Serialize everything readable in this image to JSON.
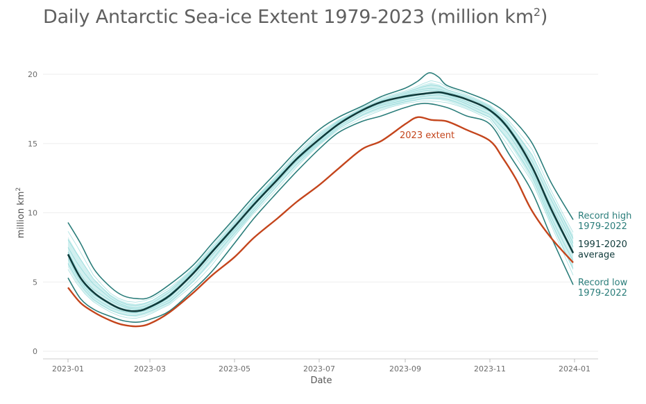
{
  "title": {
    "text": "Daily Antarctic Sea-ice Extent 1979-2023 (million km",
    "sup": "2",
    "close": ")"
  },
  "chart_data": {
    "type": "line",
    "title": "Daily Antarctic Sea-ice Extent 1979-2023 (million km2)",
    "xlabel": "Date",
    "ylabel": "million km",
    "ylabel_sup": "2",
    "ylim": [
      0,
      20
    ],
    "yticks": [
      0,
      5,
      10,
      15,
      20
    ],
    "xlim": [
      "2023-01-01",
      "2024-01-01"
    ],
    "xticks": [
      "2023-01",
      "2023-03",
      "2023-05",
      "2023-07",
      "2023-09",
      "2023-11",
      "2024-01"
    ],
    "grid": "horizontal",
    "series": [
      {
        "name": "Record high 1979-2022",
        "label_lines": [
          "Record high",
          "1979-2022"
        ],
        "color": "#2a7d7a",
        "x": [
          "2023-01-01",
          "2023-01-10",
          "2023-01-20",
          "2023-02-01",
          "2023-02-10",
          "2023-02-20",
          "2023-03-01",
          "2023-03-15",
          "2023-04-01",
          "2023-04-15",
          "2023-05-01",
          "2023-05-15",
          "2023-06-01",
          "2023-06-15",
          "2023-07-01",
          "2023-07-15",
          "2023-08-01",
          "2023-08-15",
          "2023-09-01",
          "2023-09-10",
          "2023-09-18",
          "2023-09-25",
          "2023-10-01",
          "2023-10-15",
          "2023-11-01",
          "2023-11-15",
          "2023-12-01",
          "2023-12-15",
          "2023-12-31"
        ],
        "y": [
          9.3,
          7.8,
          5.9,
          4.6,
          4.0,
          3.8,
          3.9,
          4.8,
          6.2,
          7.8,
          9.6,
          11.2,
          13.0,
          14.5,
          16.0,
          16.9,
          17.7,
          18.4,
          19.0,
          19.5,
          20.1,
          19.8,
          19.2,
          18.7,
          18.0,
          17.0,
          15.1,
          12.2,
          9.5
        ]
      },
      {
        "name": "1991-2020 average",
        "label_lines": [
          "1991-2020",
          "average"
        ],
        "color": "#0f3a3a",
        "x": [
          "2023-01-01",
          "2023-01-10",
          "2023-01-20",
          "2023-02-01",
          "2023-02-10",
          "2023-02-20",
          "2023-03-01",
          "2023-03-15",
          "2023-04-01",
          "2023-04-15",
          "2023-05-01",
          "2023-05-15",
          "2023-06-01",
          "2023-06-15",
          "2023-07-01",
          "2023-07-15",
          "2023-08-01",
          "2023-08-15",
          "2023-09-01",
          "2023-09-15",
          "2023-09-25",
          "2023-10-01",
          "2023-10-15",
          "2023-11-01",
          "2023-11-15",
          "2023-12-01",
          "2023-12-15",
          "2023-12-31"
        ],
        "y": [
          7.0,
          5.3,
          4.2,
          3.4,
          3.0,
          2.9,
          3.2,
          4.0,
          5.6,
          7.2,
          9.0,
          10.6,
          12.4,
          13.9,
          15.3,
          16.4,
          17.4,
          18.0,
          18.4,
          18.6,
          18.7,
          18.6,
          18.2,
          17.4,
          16.0,
          13.4,
          10.3,
          7.1
        ]
      },
      {
        "name": "Record low 1979-2022",
        "label_lines": [
          "Record low",
          "1979-2022"
        ],
        "color": "#2a7d7a",
        "x": [
          "2023-01-01",
          "2023-01-10",
          "2023-01-20",
          "2023-02-01",
          "2023-02-10",
          "2023-02-20",
          "2023-03-01",
          "2023-03-15",
          "2023-04-01",
          "2023-04-15",
          "2023-05-01",
          "2023-05-15",
          "2023-06-01",
          "2023-06-15",
          "2023-07-01",
          "2023-07-15",
          "2023-08-01",
          "2023-08-15",
          "2023-09-01",
          "2023-09-15",
          "2023-10-01",
          "2023-10-15",
          "2023-11-01",
          "2023-11-15",
          "2023-12-01",
          "2023-12-15",
          "2023-12-31"
        ],
        "y": [
          5.3,
          3.8,
          3.0,
          2.5,
          2.2,
          2.1,
          2.3,
          2.9,
          4.4,
          5.8,
          7.8,
          9.6,
          11.5,
          13.0,
          14.6,
          15.8,
          16.6,
          17.0,
          17.6,
          17.9,
          17.6,
          17.0,
          16.4,
          14.2,
          11.6,
          8.3,
          4.8
        ]
      },
      {
        "name": "2023 extent",
        "label_lines": [
          "2023 extent"
        ],
        "color": "#c4451c",
        "x": [
          "2023-01-01",
          "2023-01-10",
          "2023-01-20",
          "2023-02-01",
          "2023-02-10",
          "2023-02-20",
          "2023-03-01",
          "2023-03-15",
          "2023-04-01",
          "2023-04-15",
          "2023-05-01",
          "2023-05-15",
          "2023-06-01",
          "2023-06-15",
          "2023-07-01",
          "2023-07-15",
          "2023-08-01",
          "2023-08-15",
          "2023-09-01",
          "2023-09-10",
          "2023-09-20",
          "2023-10-01",
          "2023-10-15",
          "2023-11-01",
          "2023-11-10",
          "2023-11-20",
          "2023-12-01",
          "2023-12-15",
          "2023-12-31"
        ],
        "y": [
          4.6,
          3.5,
          2.8,
          2.2,
          1.9,
          1.8,
          2.0,
          2.8,
          4.2,
          5.5,
          6.8,
          8.2,
          9.6,
          10.8,
          12.0,
          13.2,
          14.6,
          15.2,
          16.4,
          16.9,
          16.7,
          16.6,
          16.0,
          15.2,
          14.0,
          12.4,
          10.2,
          8.2,
          6.4
        ]
      }
    ]
  },
  "colors": {
    "band": "#7fd4d4",
    "band_line": "#5cc7c7",
    "grid": "#eeeeee"
  }
}
